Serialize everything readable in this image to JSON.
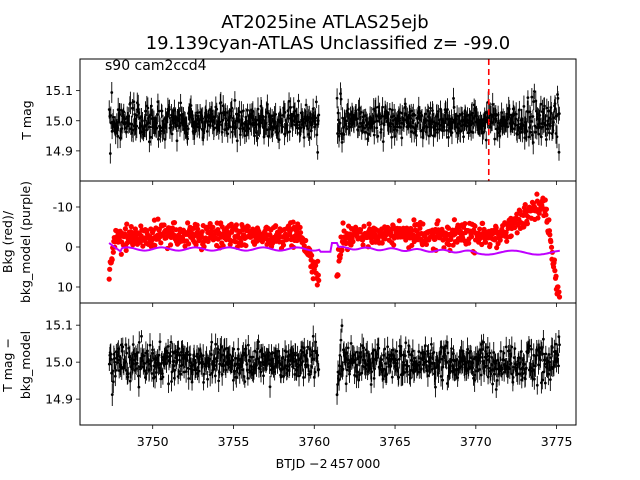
{
  "chart_data": {
    "type": "scatter",
    "title_line1": "AT2025ine  ATLAS25ejb",
    "title_line2": "19.139cyan-ATLAS Unclassified z= -99.0",
    "xlabel": "BTJD −2 457 000",
    "xlim": [
      3745.5,
      3776.2
    ],
    "x_ticks": [
      3750,
      3755,
      3760,
      3765,
      3770,
      3775
    ],
    "data_segments": [
      [
        3747.3,
        3760.3
      ],
      [
        3761.4,
        3775.2
      ]
    ],
    "panels": [
      {
        "id": "tmag",
        "ylabel": "T mag",
        "ylim": [
          15.205,
          14.8
        ],
        "y_ticks": [
          14.9,
          15.0,
          15.1
        ],
        "annotation": "s90 cam2ccd4",
        "series": [
          {
            "color": "#000000",
            "center": 15.0,
            "spread": 0.05,
            "errorbars": true
          }
        ],
        "vline": {
          "x": 3770.8,
          "color": "#ff0000",
          "style": "dashed"
        }
      },
      {
        "id": "bkg",
        "ylabel_lines": [
          "Bkg (red)/",
          "bkg_model (purple)"
        ],
        "ylim": [
          -16.5,
          14
        ],
        "y_ticks": [
          -10,
          0,
          10
        ],
        "series": [
          {
            "name": "Bkg",
            "color": "#ff0000"
          },
          {
            "name": "bkg_model",
            "color": "#bf00ff"
          }
        ]
      },
      {
        "id": "tmag_sub",
        "ylabel_lines": [
          "T mag −",
          "bkg_model"
        ],
        "ylim": [
          15.16,
          14.83
        ],
        "y_ticks": [
          14.9,
          15.0,
          15.1
        ],
        "series": [
          {
            "color": "#000000",
            "center": 15.0,
            "spread": 0.045,
            "errorbars": true
          }
        ]
      }
    ]
  }
}
